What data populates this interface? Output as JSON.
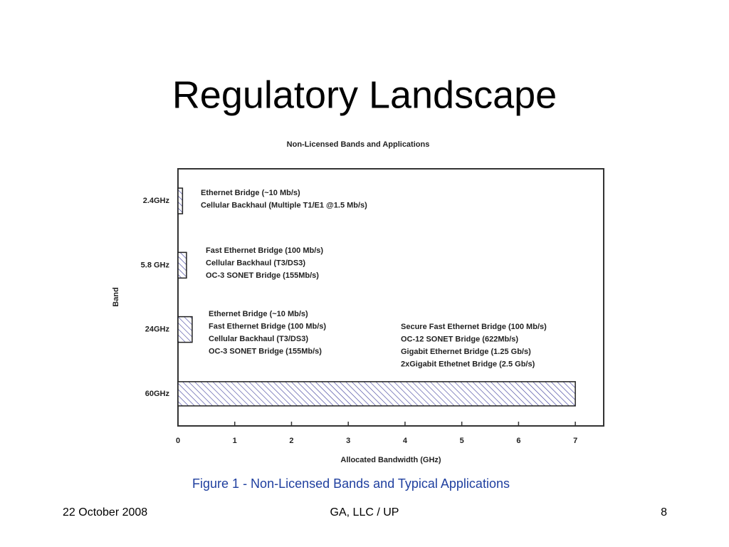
{
  "title": "Regulatory Landscape",
  "chart_data": {
    "type": "barh",
    "title": "Non-Licensed Bands and Applications",
    "x_label": "Allocated Bandwidth (GHz)",
    "y_label": "Band",
    "categories": [
      "2.4GHz",
      "5.8 GHz",
      "24GHz",
      "60GHz"
    ],
    "values": [
      0.08,
      0.15,
      0.25,
      7
    ],
    "color": "#3a3a9a",
    "xlim": [
      0,
      7.5
    ],
    "xticks": [
      0,
      1,
      2,
      3,
      4,
      5,
      6,
      7
    ],
    "annotations": [
      {
        "lines": [
          "Ethernet Bridge (~10 Mb/s)",
          "Cellular Backhaul (Multiple T1/E1 @1.5 Mb/s)"
        ]
      },
      {
        "lines": [
          "Fast Ethernet Bridge (100 Mb/s)",
          "Cellular Backhaul (T3/DS3)",
          "OC-3 SONET Bridge (155Mb/s)"
        ]
      },
      {
        "lines": [
          "Ethernet Bridge (~10 Mb/s)",
          "Fast Ethernet Bridge (100 Mb/s)",
          "Cellular Backhaul (T3/DS3)",
          "OC-3 SONET Bridge (155Mb/s)"
        ]
      },
      {
        "lines": [
          "Secure Fast Ethernet Bridge (100 Mb/s)",
          "OC-12 SONET Bridge (622Mb/s)",
          "Gigabit Ethernet Bridge (1.25 Gb/s)",
          "2xGigabit Ethetnet Bridge (2.5 Gb/s)"
        ]
      }
    ]
  },
  "caption": "Figure 1 - Non-Licensed Bands and Typical Applications",
  "footer": {
    "date": "22 October 2008",
    "org": "GA, LLC / UP",
    "page": "8"
  }
}
